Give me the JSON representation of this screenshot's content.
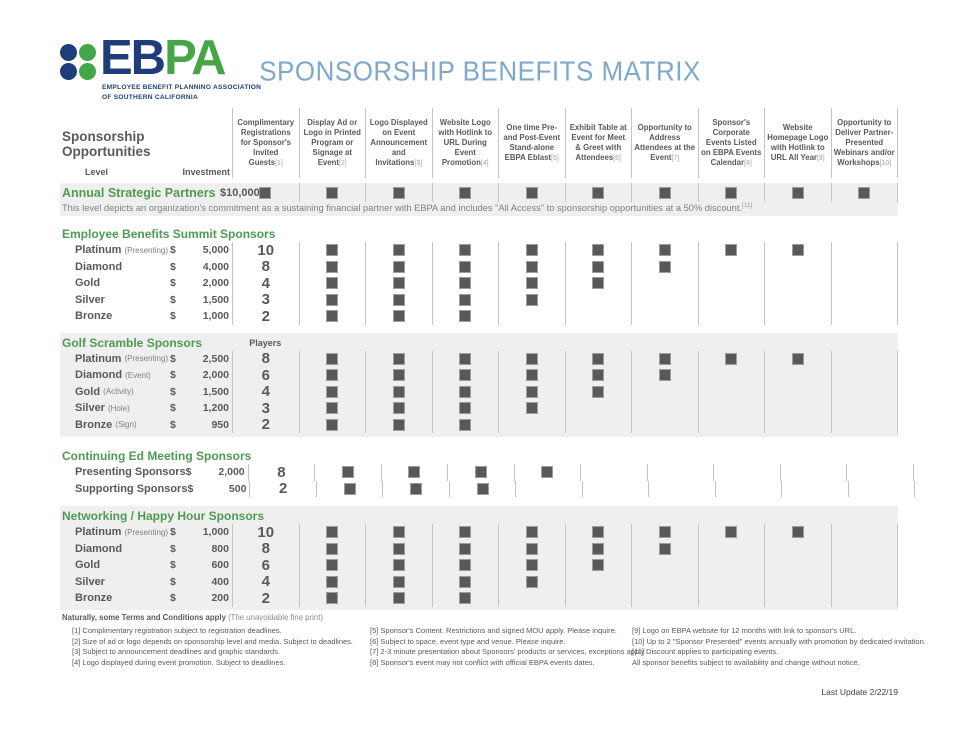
{
  "colors": {
    "navy": "#1e3d7a",
    "logo_green": "#45a648",
    "section_green": "#4e9b51",
    "title_blue": "#7fa8ca",
    "text_gray": "#595959",
    "band_gray": "#efefef",
    "check_square": "#595959"
  },
  "logo": {
    "acronym_primary": "EB",
    "acronym_secondary": "PA",
    "org_line1": "EMPLOYEE BENEFIT PLANNING ASSOCIATION",
    "org_line2": "OF SOUTHERN CALIFORNIA"
  },
  "title": "SPONSORSHIP BENEFITS MATRIX",
  "matrix": {
    "left_header": "Sponsorship Opportunities",
    "level_label": "Level",
    "investment_label": "Investment",
    "columns": [
      {
        "text": "Complimentary Registrations for Sponsor's Invited Guests",
        "ref": "[1]"
      },
      {
        "text": "Display Ad or Logo in Printed Program or Signage at Event",
        "ref": "[2]"
      },
      {
        "text": "Logo Displayed on Event Announcement and Invitations",
        "ref": "[3]"
      },
      {
        "text": "Website Logo with Hotlink to URL During Event Promotion",
        "ref": "[4]"
      },
      {
        "text": "One time Pre- and Post-Event Stand-alone EBPA Eblast",
        "ref": "[5]"
      },
      {
        "text": "Exhibit Table at Event for Meet & Greet with Attendees",
        "ref": "[6]"
      },
      {
        "text": "Opportunity to Address Attendees at the Event",
        "ref": "[7]"
      },
      {
        "text": "Sponsor's Corporate Events Listed on EBPA Events Calendar",
        "ref": "[8]"
      },
      {
        "text": "Website Homepage Logo with Hotlink to URL All Year",
        "ref": "[9]"
      },
      {
        "text": "Opportunity to Deliver Partner-Presented Webinars and/or Workshops",
        "ref": "[10]"
      }
    ],
    "annual_partner": {
      "level": "Annual Strategic Partners",
      "currency": "$",
      "investment": "10,000",
      "checks": [
        1,
        2,
        3,
        4,
        5,
        6,
        7,
        8,
        9,
        10
      ],
      "note": "This level depicts an organization's commitment as a sustaining financial partner with EBPA and includes \"All Access\" to sponsorship opportunities at a 50% discount.",
      "note_ref": "[11]"
    },
    "sections": [
      {
        "name": "Employee Benefits Summit Sponsors",
        "col1_label": "",
        "shaded": false,
        "rows": [
          {
            "level": "Platinum",
            "qualifier": "(Presenting)",
            "currency": "$",
            "investment": "5,000",
            "count": "10",
            "checks": [
              2,
              3,
              4,
              5,
              6,
              7,
              8,
              9
            ]
          },
          {
            "level": "Diamond",
            "qualifier": "",
            "currency": "$",
            "investment": "4,000",
            "count": "8",
            "checks": [
              2,
              3,
              4,
              5,
              6,
              7
            ]
          },
          {
            "level": "Gold",
            "qualifier": "",
            "currency": "$",
            "investment": "2,000",
            "count": "4",
            "checks": [
              2,
              3,
              4,
              5,
              6
            ]
          },
          {
            "level": "Silver",
            "qualifier": "",
            "currency": "$",
            "investment": "1,500",
            "count": "3",
            "checks": [
              2,
              3,
              4,
              5
            ]
          },
          {
            "level": "Bronze",
            "qualifier": "",
            "currency": "$",
            "investment": "1,000",
            "count": "2",
            "checks": [
              2,
              3,
              4
            ]
          }
        ]
      },
      {
        "name": "Golf Scramble Sponsors",
        "col1_label": "Players",
        "shaded": true,
        "rows": [
          {
            "level": "Platinum",
            "qualifier": "(Presenting)",
            "currency": "$",
            "investment": "2,500",
            "count": "8",
            "checks": [
              2,
              3,
              4,
              5,
              6,
              7,
              8,
              9
            ]
          },
          {
            "level": "Diamond",
            "qualifier": "(Event)",
            "currency": "$",
            "investment": "2,000",
            "count": "6",
            "checks": [
              2,
              3,
              4,
              5,
              6,
              7
            ]
          },
          {
            "level": "Gold",
            "qualifier": "(Activity)",
            "currency": "$",
            "investment": "1,500",
            "count": "4",
            "checks": [
              2,
              3,
              4,
              5,
              6
            ]
          },
          {
            "level": "Silver",
            "qualifier": "(Hole)",
            "currency": "$",
            "investment": "1,200",
            "count": "3",
            "checks": [
              2,
              3,
              4,
              5
            ]
          },
          {
            "level": "Bronze",
            "qualifier": "(Sign)",
            "currency": "$",
            "investment": "950",
            "count": "2",
            "checks": [
              2,
              3,
              4
            ]
          }
        ]
      },
      {
        "name": "Continuing Ed Meeting Sponsors",
        "col1_label": "",
        "shaded": false,
        "rows": [
          {
            "level": "Presenting Sponsors",
            "qualifier": "",
            "currency": "$",
            "investment": "2,000",
            "count": "8",
            "checks": [
              2,
              3,
              4,
              5
            ]
          },
          {
            "level": "Supporting Sponsors",
            "qualifier": "",
            "currency": "$",
            "investment": "500",
            "count": "2",
            "checks": [
              2,
              3,
              4
            ]
          }
        ]
      },
      {
        "name": "Networking / Happy Hour Sponsors",
        "col1_label": "",
        "shaded": true,
        "rows": [
          {
            "level": "Platinum",
            "qualifier": "(Presenting)",
            "currency": "$",
            "investment": "1,000",
            "count": "10",
            "checks": [
              2,
              3,
              4,
              5,
              6,
              7,
              8,
              9
            ]
          },
          {
            "level": "Diamond",
            "qualifier": "",
            "currency": "$",
            "investment": "800",
            "count": "8",
            "checks": [
              2,
              3,
              4,
              5,
              6,
              7
            ]
          },
          {
            "level": "Gold",
            "qualifier": "",
            "currency": "$",
            "investment": "600",
            "count": "6",
            "checks": [
              2,
              3,
              4,
              5,
              6
            ]
          },
          {
            "level": "Silver",
            "qualifier": "",
            "currency": "$",
            "investment": "400",
            "count": "4",
            "checks": [
              2,
              3,
              4,
              5
            ]
          },
          {
            "level": "Bronze",
            "qualifier": "",
            "currency": "$",
            "investment": "200",
            "count": "2",
            "checks": [
              2,
              3,
              4
            ]
          }
        ]
      }
    ]
  },
  "footnotes": {
    "heading_bold": "Naturally, some Terms and Conditions apply",
    "heading_light": " (The unavoidable fine print)",
    "col1": [
      "[1] Complimentary registration subject to registration deadlines.",
      "[2] Size of ad or logo depends on sponsorship level and media. Subject to deadlines.",
      "[3] Subject to announcement deadlines and graphic standards.",
      "[4] Logo displayed during event promotion. Subject to deadlines."
    ],
    "col2": [
      "[5] Sponsor's Content. Restrictions and signed MOU apply.  Please inquire.",
      "[6] Subject to space, event type and venue. Please inquire.",
      "[7] 2-3 minute presentation about Sponsors' products or services, exceptions apply",
      "[8] Sponsor's event may not conflict with official EBPA events dates."
    ],
    "col3": [
      "[9] Logo on EBPA website for 12 months with link to sponsor's URL.",
      "[10] Up to 2 \"Sponsor Presented\" events annually with promotion by dedicated invitation.",
      "[11] Discount applies to participating events.",
      "All sponsor benefits subject to availability and change without notice."
    ]
  },
  "last_update": "Last Update 2/22/19"
}
